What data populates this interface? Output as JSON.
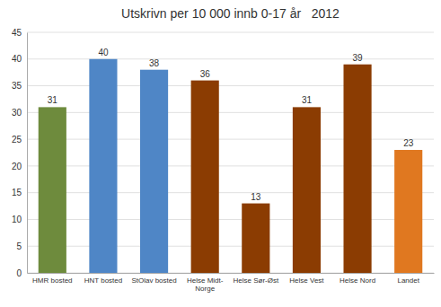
{
  "chart_data": {
    "type": "bar",
    "title": "Utskrivn per 10 000 innb 0-17 år   2012",
    "categories": [
      "HMR bosted",
      "HNT bosted",
      "StOlav bosted",
      "Helse Midt-\nNorge",
      "Helse Sør-Øst",
      "Helse Vest",
      "Helse Nord",
      "Landet"
    ],
    "values": [
      31,
      40,
      38,
      36,
      13,
      31,
      39,
      23
    ],
    "colors": [
      "#6e8b3d",
      "#4f86c6",
      "#4f86c6",
      "#8b3c02",
      "#8b3c02",
      "#8b3c02",
      "#8b3c02",
      "#e07820"
    ],
    "ylim": [
      0,
      45
    ],
    "yticks": [
      0,
      5,
      10,
      15,
      20,
      25,
      30,
      35,
      40,
      45
    ],
    "grid": true,
    "data_labels": true
  }
}
